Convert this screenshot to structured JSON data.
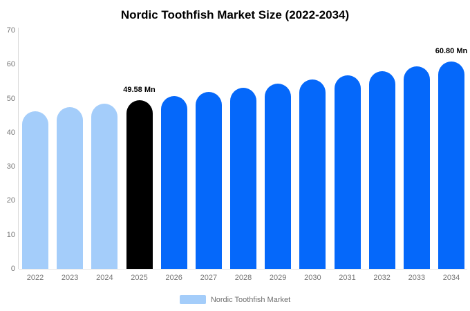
{
  "title": "Nordic Toothfish Market Size (2022-2034)",
  "legend": {
    "label": "Nordic Toothfish Market",
    "swatch_color": "#a4cdfa"
  },
  "colors": {
    "historical_bar": "#a4cdfa",
    "base_year_bar": "#000000",
    "forecast_bar": "#0568fa",
    "axis_line": "#d9d9d9",
    "tick_text": "#757575",
    "data_label_text": "#000000"
  },
  "chart_data": {
    "type": "bar",
    "title": "Nordic Toothfish Market Size (2022-2034)",
    "categories": [
      "2022",
      "2023",
      "2024",
      "2025",
      "2026",
      "2027",
      "2028",
      "2029",
      "2030",
      "2031",
      "2032",
      "2033",
      "2034"
    ],
    "values": [
      46.32,
      47.38,
      48.47,
      49.58,
      50.72,
      51.88,
      53.07,
      54.28,
      55.53,
      56.8,
      58.1,
      59.43,
      60.8
    ],
    "bar_colors": [
      "#a4cdfa",
      "#a4cdfa",
      "#a4cdfa",
      "#000000",
      "#0568fa",
      "#0568fa",
      "#0568fa",
      "#0568fa",
      "#0568fa",
      "#0568fa",
      "#0568fa",
      "#0568fa",
      "#0568fa"
    ],
    "data_labels": [
      null,
      null,
      null,
      "49.58 Mn",
      null,
      null,
      null,
      null,
      null,
      null,
      null,
      null,
      "60.80 Mn"
    ],
    "unit": "Mn",
    "xlabel": "",
    "ylabel": "",
    "ylim": [
      0,
      70
    ],
    "yticks": [
      0,
      10,
      20,
      30,
      40,
      50,
      60,
      70
    ],
    "grid": false,
    "legend_position": "bottom-center",
    "series": [
      {
        "name": "Nordic Toothfish Market",
        "values": [
          46.32,
          47.38,
          48.47,
          49.58,
          50.72,
          51.88,
          53.07,
          54.28,
          55.53,
          56.8,
          58.1,
          59.43,
          60.8
        ]
      }
    ]
  }
}
